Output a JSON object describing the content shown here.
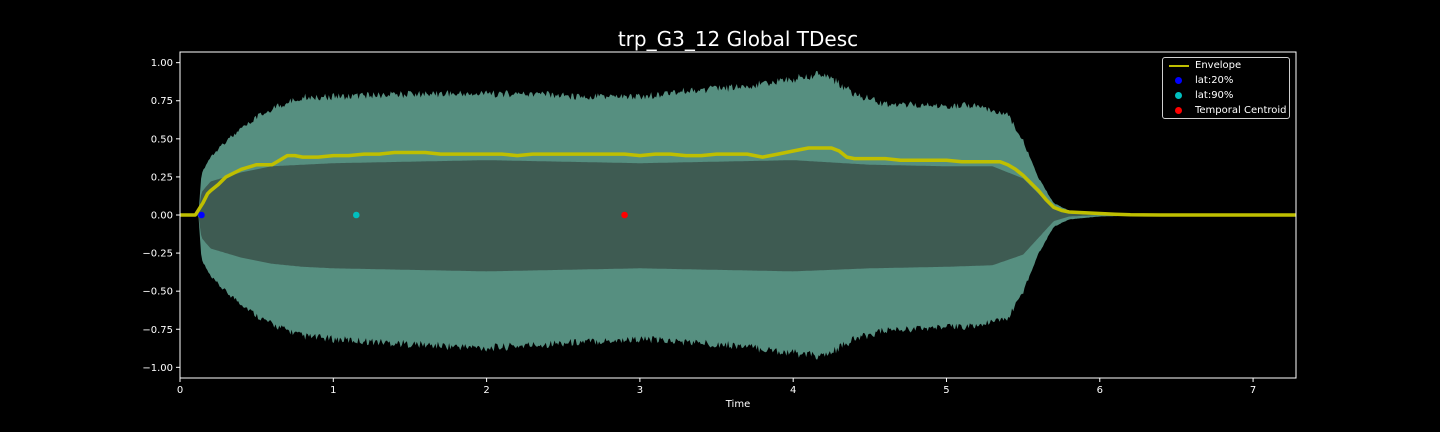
{
  "chart_data": {
    "type": "line",
    "title": "trp_G3_12 Global TDesc",
    "xlabel": "Time",
    "ylabel": "",
    "xlim": [
      0,
      7.28
    ],
    "ylim": [
      -1.07,
      1.07
    ],
    "x_ticks": [
      0,
      1,
      2,
      3,
      4,
      5,
      6,
      7
    ],
    "x_tick_labels": [
      "0",
      "1",
      "2",
      "3",
      "4",
      "5",
      "6",
      "7"
    ],
    "y_ticks": [
      1.0,
      0.75,
      0.5,
      0.25,
      0.0,
      -0.25,
      -0.5,
      -0.75,
      -1.0
    ],
    "y_tick_labels": [
      "1.00",
      "0.75",
      "0.50",
      "0.25",
      "0.00",
      "−0.25",
      "−0.50",
      "−0.75",
      "−1.00"
    ],
    "grid": false,
    "legend_position": "top-right",
    "waveform": {
      "color": "#5f9e8e",
      "core_color": "#3e5b52",
      "peak_upper": {
        "x": [
          0,
          0.12,
          0.14,
          0.2,
          0.3,
          0.4,
          0.5,
          0.6,
          0.7,
          0.8,
          1.0,
          1.3,
          1.6,
          2.0,
          2.3,
          2.6,
          3.0,
          3.3,
          3.6,
          3.9,
          4.2,
          4.4,
          4.6,
          5.0,
          5.2,
          5.4,
          5.5,
          5.6,
          5.7,
          5.8,
          6.0,
          6.2,
          7.28
        ],
        "y": [
          0,
          0,
          0.28,
          0.4,
          0.5,
          0.58,
          0.66,
          0.72,
          0.76,
          0.8,
          0.8,
          0.81,
          0.82,
          0.82,
          0.82,
          0.8,
          0.8,
          0.84,
          0.86,
          0.9,
          0.96,
          0.82,
          0.75,
          0.74,
          0.74,
          0.68,
          0.5,
          0.25,
          0.08,
          0.03,
          0.01,
          0.005,
          0.0
        ]
      },
      "peak_lower": {
        "x": [
          0,
          0.12,
          0.14,
          0.2,
          0.3,
          0.4,
          0.5,
          0.6,
          0.7,
          0.8,
          1.0,
          1.3,
          1.6,
          2.0,
          2.3,
          2.6,
          3.0,
          3.3,
          3.6,
          3.9,
          4.2,
          4.4,
          4.6,
          5.0,
          5.2,
          5.4,
          5.5,
          5.6,
          5.7,
          5.8,
          6.0,
          6.2,
          7.28
        ],
        "y": [
          0,
          0,
          -0.3,
          -0.42,
          -0.52,
          -0.6,
          -0.68,
          -0.74,
          -0.78,
          -0.82,
          -0.84,
          -0.86,
          -0.88,
          -0.9,
          -0.88,
          -0.86,
          -0.84,
          -0.86,
          -0.88,
          -0.92,
          -0.96,
          -0.84,
          -0.78,
          -0.76,
          -0.75,
          -0.7,
          -0.52,
          -0.26,
          -0.08,
          -0.03,
          -0.01,
          -0.005,
          0.0
        ]
      },
      "core_upper": {
        "x": [
          0,
          0.12,
          0.14,
          0.2,
          0.4,
          0.6,
          0.8,
          1.0,
          1.5,
          2.0,
          2.5,
          3.0,
          3.5,
          4.0,
          4.5,
          5.0,
          5.3,
          5.5,
          5.6,
          5.7,
          5.8,
          6.0,
          7.28
        ],
        "y": [
          0,
          0,
          0.15,
          0.22,
          0.28,
          0.32,
          0.33,
          0.34,
          0.35,
          0.36,
          0.35,
          0.34,
          0.35,
          0.36,
          0.33,
          0.32,
          0.32,
          0.24,
          0.14,
          0.04,
          0.01,
          0.0,
          0.0
        ]
      },
      "core_lower": {
        "x": [
          0,
          0.12,
          0.14,
          0.2,
          0.4,
          0.6,
          0.8,
          1.0,
          1.5,
          2.0,
          2.5,
          3.0,
          3.5,
          4.0,
          4.5,
          5.0,
          5.3,
          5.5,
          5.6,
          5.7,
          5.8,
          6.0,
          7.28
        ],
        "y": [
          0,
          0,
          -0.15,
          -0.22,
          -0.28,
          -0.32,
          -0.34,
          -0.35,
          -0.36,
          -0.37,
          -0.36,
          -0.35,
          -0.36,
          -0.37,
          -0.35,
          -0.34,
          -0.33,
          -0.26,
          -0.15,
          -0.04,
          -0.01,
          0.0,
          0.0
        ]
      }
    },
    "series": [
      {
        "name": "Envelope",
        "type": "line",
        "color": "#bfbf00",
        "x": [
          0,
          0.1,
          0.15,
          0.18,
          0.2,
          0.25,
          0.3,
          0.4,
          0.5,
          0.6,
          0.65,
          0.7,
          0.75,
          0.8,
          0.9,
          1.0,
          1.1,
          1.2,
          1.3,
          1.4,
          1.5,
          1.6,
          1.7,
          1.8,
          1.9,
          2.0,
          2.1,
          2.2,
          2.3,
          2.4,
          2.5,
          2.6,
          2.7,
          2.8,
          2.9,
          3.0,
          3.1,
          3.2,
          3.3,
          3.4,
          3.5,
          3.6,
          3.7,
          3.8,
          3.9,
          4.0,
          4.1,
          4.2,
          4.25,
          4.3,
          4.35,
          4.4,
          4.5,
          4.6,
          4.7,
          4.8,
          4.9,
          5.0,
          5.1,
          5.2,
          5.3,
          5.35,
          5.4,
          5.45,
          5.5,
          5.55,
          5.6,
          5.65,
          5.7,
          5.75,
          5.8,
          5.9,
          6.0,
          6.1,
          6.2,
          6.4,
          7.28
        ],
        "y": [
          0,
          0.0,
          0.08,
          0.14,
          0.16,
          0.2,
          0.25,
          0.3,
          0.33,
          0.33,
          0.36,
          0.39,
          0.39,
          0.38,
          0.38,
          0.39,
          0.39,
          0.4,
          0.4,
          0.41,
          0.41,
          0.41,
          0.4,
          0.4,
          0.4,
          0.4,
          0.4,
          0.39,
          0.4,
          0.4,
          0.4,
          0.4,
          0.4,
          0.4,
          0.4,
          0.39,
          0.4,
          0.4,
          0.39,
          0.39,
          0.4,
          0.4,
          0.4,
          0.38,
          0.4,
          0.42,
          0.44,
          0.44,
          0.44,
          0.42,
          0.38,
          0.37,
          0.37,
          0.37,
          0.36,
          0.36,
          0.36,
          0.36,
          0.35,
          0.35,
          0.35,
          0.35,
          0.33,
          0.3,
          0.26,
          0.21,
          0.16,
          0.1,
          0.05,
          0.03,
          0.02,
          0.015,
          0.01,
          0.005,
          0.002,
          0.0,
          0.0
        ]
      },
      {
        "name": "lat:20%",
        "type": "scatter",
        "color": "#0000ff",
        "x": [
          0.14
        ],
        "y": [
          0.0
        ]
      },
      {
        "name": "lat:90%",
        "type": "scatter",
        "color": "#00bfbf",
        "x": [
          1.15
        ],
        "y": [
          0.0
        ]
      },
      {
        "name": "Temporal Centroid",
        "type": "scatter",
        "color": "#ff0000",
        "x": [
          2.9
        ],
        "y": [
          0.0
        ]
      }
    ]
  }
}
